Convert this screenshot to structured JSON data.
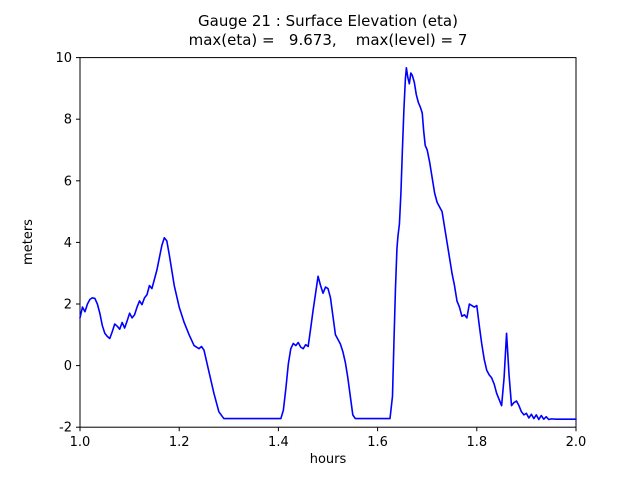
{
  "chart_data": {
    "type": "line",
    "title": "Gauge 21 : Surface Elevation (eta)",
    "subtitle": "max(eta) =   9.673,    max(level) = 7",
    "xlabel": "hours",
    "ylabel": "meters",
    "xlim": [
      1.0,
      2.0
    ],
    "ylim": [
      -2,
      10
    ],
    "xticks": [
      1.0,
      1.2,
      1.4,
      1.6,
      1.8,
      2.0
    ],
    "xtick_labels": [
      "1.0",
      "1.2",
      "1.4",
      "1.6",
      "1.8",
      "2.0"
    ],
    "yticks": [
      -2,
      0,
      2,
      4,
      6,
      8,
      10
    ],
    "ytick_labels": [
      "-2",
      "0",
      "2",
      "4",
      "6",
      "8",
      "10"
    ],
    "grid": false,
    "legend": "none",
    "line_color": "#0000ff",
    "line_width": 1.6,
    "max_eta": 9.673,
    "max_level": 7,
    "series": [
      {
        "name": "eta",
        "points": [
          [
            1.0,
            1.55
          ],
          [
            1.005,
            1.9
          ],
          [
            1.01,
            1.75
          ],
          [
            1.015,
            2.0
          ],
          [
            1.02,
            2.15
          ],
          [
            1.025,
            2.2
          ],
          [
            1.03,
            2.18
          ],
          [
            1.035,
            2.0
          ],
          [
            1.04,
            1.7
          ],
          [
            1.045,
            1.3
          ],
          [
            1.05,
            1.05
          ],
          [
            1.055,
            0.95
          ],
          [
            1.06,
            0.88
          ],
          [
            1.065,
            1.1
          ],
          [
            1.07,
            1.35
          ],
          [
            1.075,
            1.28
          ],
          [
            1.08,
            1.18
          ],
          [
            1.085,
            1.4
          ],
          [
            1.09,
            1.22
          ],
          [
            1.095,
            1.45
          ],
          [
            1.1,
            1.7
          ],
          [
            1.105,
            1.55
          ],
          [
            1.11,
            1.65
          ],
          [
            1.115,
            1.9
          ],
          [
            1.12,
            2.1
          ],
          [
            1.125,
            1.98
          ],
          [
            1.13,
            2.2
          ],
          [
            1.135,
            2.3
          ],
          [
            1.14,
            2.6
          ],
          [
            1.145,
            2.5
          ],
          [
            1.15,
            2.8
          ],
          [
            1.155,
            3.1
          ],
          [
            1.16,
            3.5
          ],
          [
            1.165,
            3.9
          ],
          [
            1.17,
            4.15
          ],
          [
            1.175,
            4.05
          ],
          [
            1.18,
            3.6
          ],
          [
            1.185,
            3.1
          ],
          [
            1.19,
            2.6
          ],
          [
            1.2,
            1.9
          ],
          [
            1.21,
            1.4
          ],
          [
            1.22,
            1.0
          ],
          [
            1.23,
            0.65
          ],
          [
            1.24,
            0.55
          ],
          [
            1.245,
            0.62
          ],
          [
            1.25,
            0.5
          ],
          [
            1.26,
            -0.2
          ],
          [
            1.27,
            -0.9
          ],
          [
            1.28,
            -1.5
          ],
          [
            1.29,
            -1.72
          ],
          [
            1.31,
            -1.72
          ],
          [
            1.33,
            -1.72
          ],
          [
            1.35,
            -1.72
          ],
          [
            1.37,
            -1.72
          ],
          [
            1.39,
            -1.72
          ],
          [
            1.405,
            -1.72
          ],
          [
            1.41,
            -1.45
          ],
          [
            1.415,
            -0.75
          ],
          [
            1.42,
            0.05
          ],
          [
            1.425,
            0.55
          ],
          [
            1.43,
            0.72
          ],
          [
            1.435,
            0.65
          ],
          [
            1.44,
            0.75
          ],
          [
            1.445,
            0.6
          ],
          [
            1.45,
            0.55
          ],
          [
            1.455,
            0.68
          ],
          [
            1.46,
            0.62
          ],
          [
            1.465,
            1.2
          ],
          [
            1.47,
            1.8
          ],
          [
            1.475,
            2.35
          ],
          [
            1.48,
            2.9
          ],
          [
            1.485,
            2.6
          ],
          [
            1.49,
            2.35
          ],
          [
            1.495,
            2.55
          ],
          [
            1.5,
            2.5
          ],
          [
            1.505,
            2.2
          ],
          [
            1.51,
            1.6
          ],
          [
            1.515,
            1.0
          ],
          [
            1.52,
            0.85
          ],
          [
            1.525,
            0.7
          ],
          [
            1.53,
            0.45
          ],
          [
            1.535,
            0.1
          ],
          [
            1.54,
            -0.4
          ],
          [
            1.545,
            -1.0
          ],
          [
            1.55,
            -1.6
          ],
          [
            1.555,
            -1.72
          ],
          [
            1.575,
            -1.72
          ],
          [
            1.595,
            -1.72
          ],
          [
            1.615,
            -1.72
          ],
          [
            1.625,
            -1.72
          ],
          [
            1.63,
            -1.0
          ],
          [
            1.633,
            0.8
          ],
          [
            1.636,
            2.5
          ],
          [
            1.639,
            3.8
          ],
          [
            1.641,
            4.2
          ],
          [
            1.644,
            4.6
          ],
          [
            1.647,
            5.6
          ],
          [
            1.65,
            7.0
          ],
          [
            1.653,
            8.3
          ],
          [
            1.656,
            9.3
          ],
          [
            1.658,
            9.67
          ],
          [
            1.661,
            9.35
          ],
          [
            1.664,
            9.15
          ],
          [
            1.667,
            9.5
          ],
          [
            1.67,
            9.42
          ],
          [
            1.674,
            9.2
          ],
          [
            1.678,
            8.8
          ],
          [
            1.682,
            8.55
          ],
          [
            1.686,
            8.4
          ],
          [
            1.69,
            8.2
          ],
          [
            1.693,
            7.6
          ],
          [
            1.696,
            7.15
          ],
          [
            1.7,
            7.0
          ],
          [
            1.705,
            6.6
          ],
          [
            1.71,
            6.1
          ],
          [
            1.715,
            5.6
          ],
          [
            1.72,
            5.3
          ],
          [
            1.725,
            5.15
          ],
          [
            1.73,
            5.0
          ],
          [
            1.735,
            4.5
          ],
          [
            1.74,
            4.0
          ],
          [
            1.745,
            3.5
          ],
          [
            1.75,
            3.0
          ],
          [
            1.755,
            2.6
          ],
          [
            1.76,
            2.1
          ],
          [
            1.765,
            1.9
          ],
          [
            1.77,
            1.6
          ],
          [
            1.775,
            1.65
          ],
          [
            1.78,
            1.55
          ],
          [
            1.785,
            2.0
          ],
          [
            1.79,
            1.95
          ],
          [
            1.795,
            1.9
          ],
          [
            1.8,
            1.95
          ],
          [
            1.805,
            1.3
          ],
          [
            1.81,
            0.7
          ],
          [
            1.815,
            0.2
          ],
          [
            1.82,
            -0.15
          ],
          [
            1.825,
            -0.3
          ],
          [
            1.83,
            -0.4
          ],
          [
            1.835,
            -0.6
          ],
          [
            1.84,
            -0.9
          ],
          [
            1.845,
            -1.1
          ],
          [
            1.85,
            -1.3
          ],
          [
            1.855,
            -0.4
          ],
          [
            1.86,
            1.05
          ],
          [
            1.865,
            -0.3
          ],
          [
            1.87,
            -1.3
          ],
          [
            1.875,
            -1.2
          ],
          [
            1.88,
            -1.15
          ],
          [
            1.885,
            -1.3
          ],
          [
            1.89,
            -1.5
          ],
          [
            1.895,
            -1.6
          ],
          [
            1.9,
            -1.55
          ],
          [
            1.905,
            -1.7
          ],
          [
            1.91,
            -1.58
          ],
          [
            1.915,
            -1.72
          ],
          [
            1.92,
            -1.6
          ],
          [
            1.925,
            -1.75
          ],
          [
            1.93,
            -1.62
          ],
          [
            1.935,
            -1.74
          ],
          [
            1.94,
            -1.66
          ],
          [
            1.945,
            -1.75
          ],
          [
            1.95,
            -1.73
          ],
          [
            1.96,
            -1.74
          ],
          [
            1.97,
            -1.74
          ],
          [
            1.98,
            -1.74
          ],
          [
            1.99,
            -1.74
          ],
          [
            2.0,
            -1.74
          ]
        ]
      }
    ]
  }
}
